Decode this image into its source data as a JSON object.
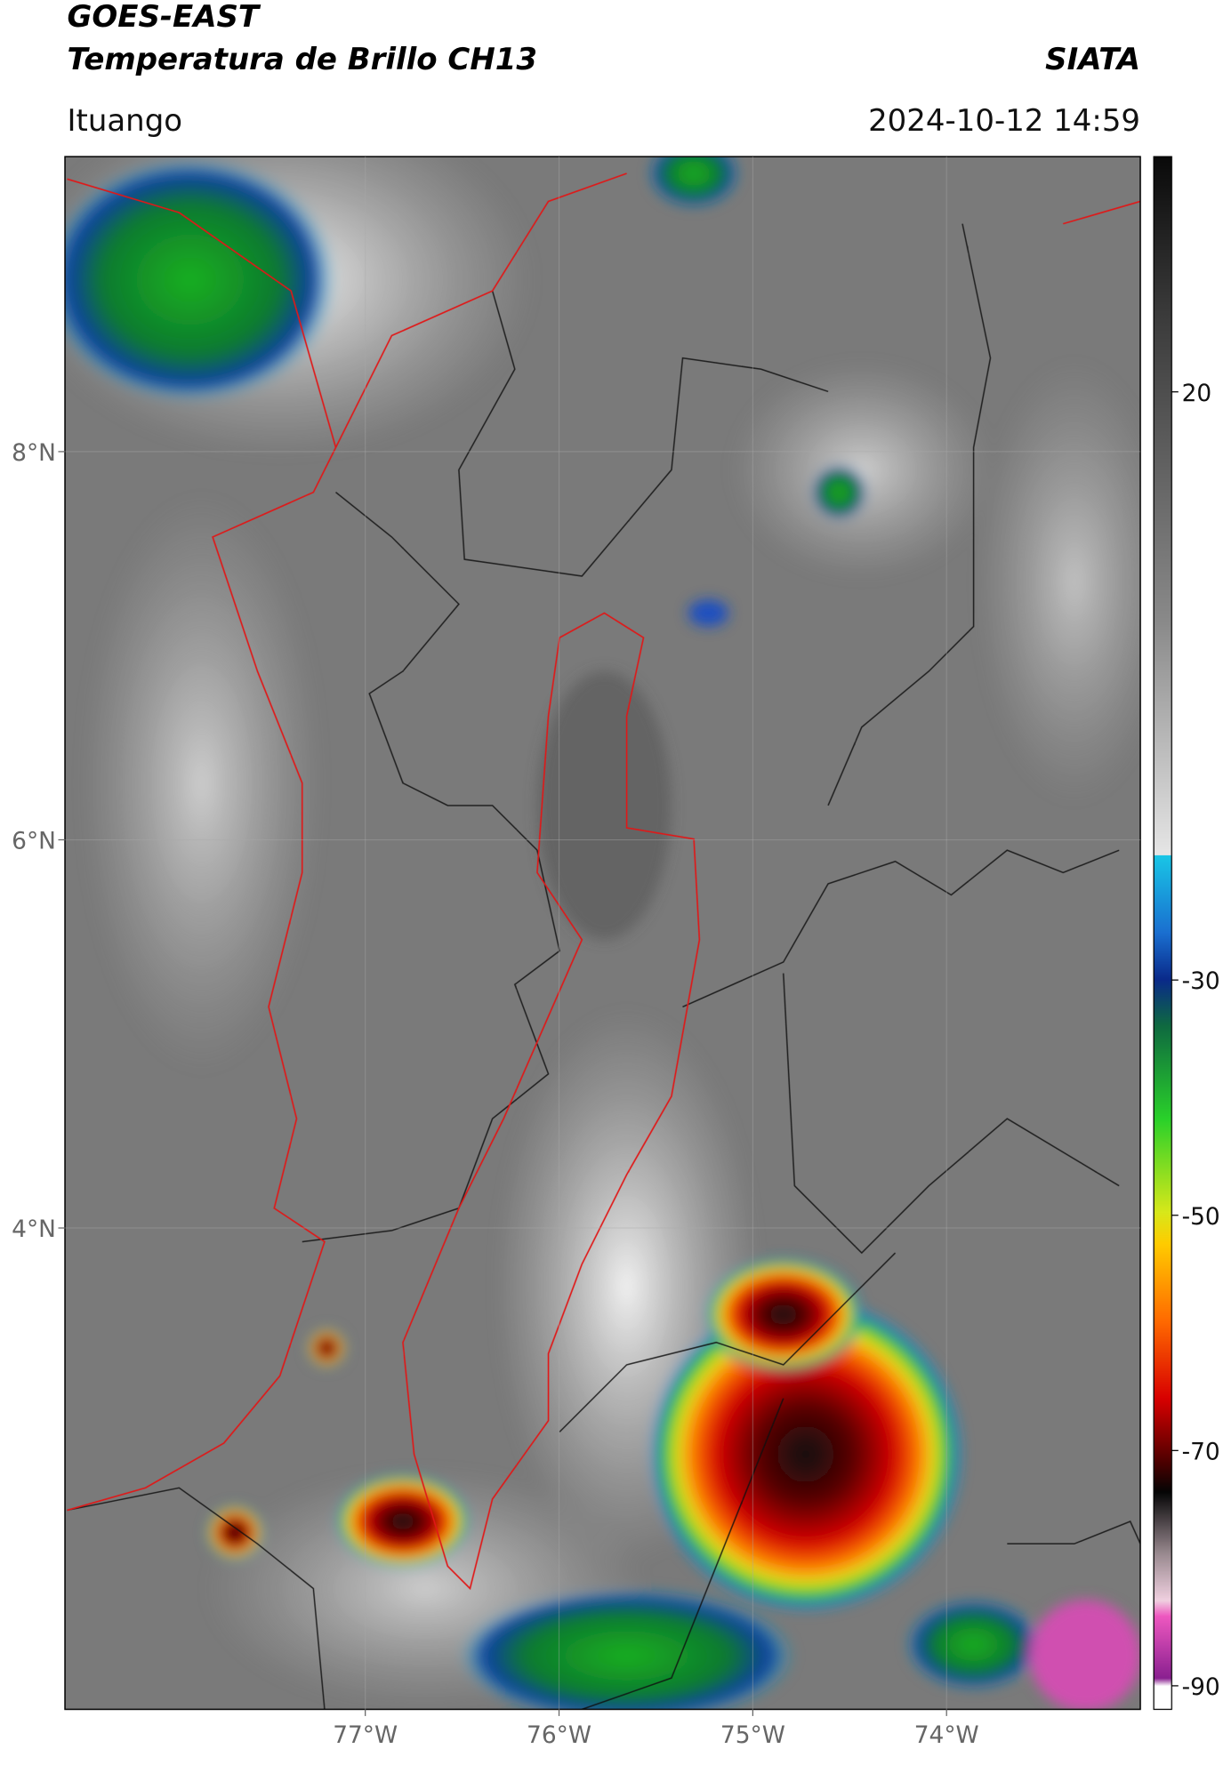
{
  "header": {
    "satellite": "GOES-EAST",
    "product": "Temperatura de Brillo CH13",
    "brand": "SIATA",
    "region": "Ituango",
    "datetime": "2024-10-12 14:59"
  },
  "map": {
    "xlim": [
      -78.55,
      -73.0
    ],
    "ylim": [
      1.52,
      9.52
    ],
    "xticks": [
      {
        "value": -77,
        "label": "77°W"
      },
      {
        "value": -76,
        "label": "76°W"
      },
      {
        "value": -75,
        "label": "75°W"
      },
      {
        "value": -74,
        "label": "74°W"
      }
    ],
    "yticks": [
      {
        "value": 8,
        "label": "8°N"
      },
      {
        "value": 6,
        "label": "6°N"
      },
      {
        "value": 4,
        "label": "4°N"
      }
    ],
    "grid": true
  },
  "colorbar": {
    "lim": [
      -92,
      40
    ],
    "ticks": [
      20,
      -30,
      -50,
      -70,
      -90
    ]
  }
}
